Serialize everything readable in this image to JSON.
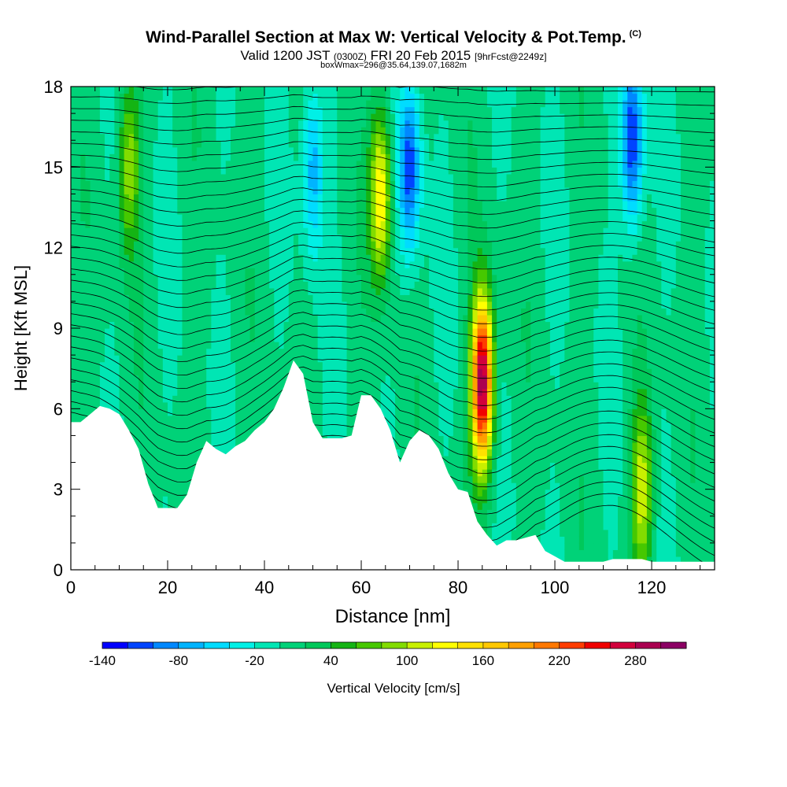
{
  "title": "Wind-Parallel Section at Max W: Vertical Velocity & Pot.Temp.",
  "title_mark": "(C)",
  "subtitle": {
    "valid": "Valid 1200 JST",
    "utc": "(0300Z)",
    "date": "FRI 20 Feb 2015",
    "fcst": "[9hrFcst@2249z]"
  },
  "subtitle2": "boxWmax=296@35.64,139.07,1682m",
  "chart_data": {
    "type": "heatmap",
    "xlabel": "Distance [nm]",
    "ylabel": "Height [Kft MSL]",
    "xlim": [
      0,
      133
    ],
    "ylim": [
      0,
      18
    ],
    "x_ticks": [
      0,
      20,
      40,
      60,
      80,
      100,
      120
    ],
    "y_ticks": [
      0,
      3,
      6,
      9,
      12,
      15,
      18
    ],
    "colorbar": {
      "label": "Vertical Velocity [cm/s]",
      "min": -140,
      "max": 320,
      "step": 20,
      "tick_labels": [
        "-140",
        "-80",
        "-20",
        "40",
        "100",
        "160",
        "220",
        "280"
      ],
      "colors": [
        "#0000ff",
        "#0044ff",
        "#0088ff",
        "#00b4ff",
        "#00dcff",
        "#00f0e6",
        "#00e6b4",
        "#00d278",
        "#00c85a",
        "#14b414",
        "#46c800",
        "#82dc00",
        "#c8f000",
        "#ffff00",
        "#ffe100",
        "#ffc800",
        "#ffa000",
        "#ff7800",
        "#ff3c00",
        "#f00000",
        "#d2003c",
        "#aa0050",
        "#8c0064"
      ]
    },
    "terrain_profile": {
      "distance": [
        0,
        2,
        4,
        6,
        8,
        10,
        12,
        14,
        16,
        18,
        20,
        22,
        24,
        26,
        28,
        30,
        32,
        34,
        36,
        38,
        40,
        42,
        44,
        46,
        48,
        50,
        52,
        54,
        56,
        58,
        60,
        62,
        64,
        66,
        68,
        70,
        72,
        74,
        76,
        78,
        80,
        82,
        84,
        86,
        88,
        90,
        92,
        94,
        96,
        98,
        100,
        102,
        104,
        106,
        108,
        110,
        112,
        114,
        116,
        118,
        120,
        122,
        124,
        126,
        128,
        130,
        133
      ],
      "height_kft": [
        5.5,
        5.5,
        5.8,
        6.1,
        6.0,
        5.8,
        5.2,
        4.5,
        3.2,
        2.3,
        2.3,
        2.3,
        2.8,
        4.0,
        4.8,
        4.5,
        4.3,
        4.6,
        4.8,
        5.2,
        5.5,
        6.0,
        6.8,
        7.8,
        7.3,
        5.5,
        4.9,
        4.9,
        4.9,
        5.0,
        6.5,
        6.5,
        6.0,
        5.2,
        4.0,
        4.8,
        5.2,
        5.0,
        4.5,
        3.6,
        3.0,
        2.9,
        1.8,
        1.3,
        0.9,
        1.1,
        1.1,
        1.2,
        1.3,
        0.7,
        0.5,
        0.3,
        0.3,
        0.3,
        0.3,
        0.3,
        0.4,
        0.4,
        0.4,
        0.4,
        0.3,
        0.3,
        0.3,
        0.3,
        0.3,
        0.3,
        0.3
      ]
    },
    "vertical_velocity_features": [
      {
        "distance": 85,
        "height_kft": 7.0,
        "peak_cm_s": 296
      },
      {
        "distance": 64,
        "height_kft": 14.0,
        "peak_cm_s": 140
      },
      {
        "distance": 118,
        "height_kft": 3.0,
        "peak_cm_s": 110
      },
      {
        "distance": 12,
        "height_kft": 15.0,
        "peak_cm_s": 90
      },
      {
        "distance": 70,
        "height_kft": 15.0,
        "peak_cm_s": -120
      },
      {
        "distance": 116,
        "height_kft": 16.0,
        "peak_cm_s": -130
      },
      {
        "distance": 50,
        "height_kft": 15.0,
        "peak_cm_s": -80
      }
    ]
  }
}
